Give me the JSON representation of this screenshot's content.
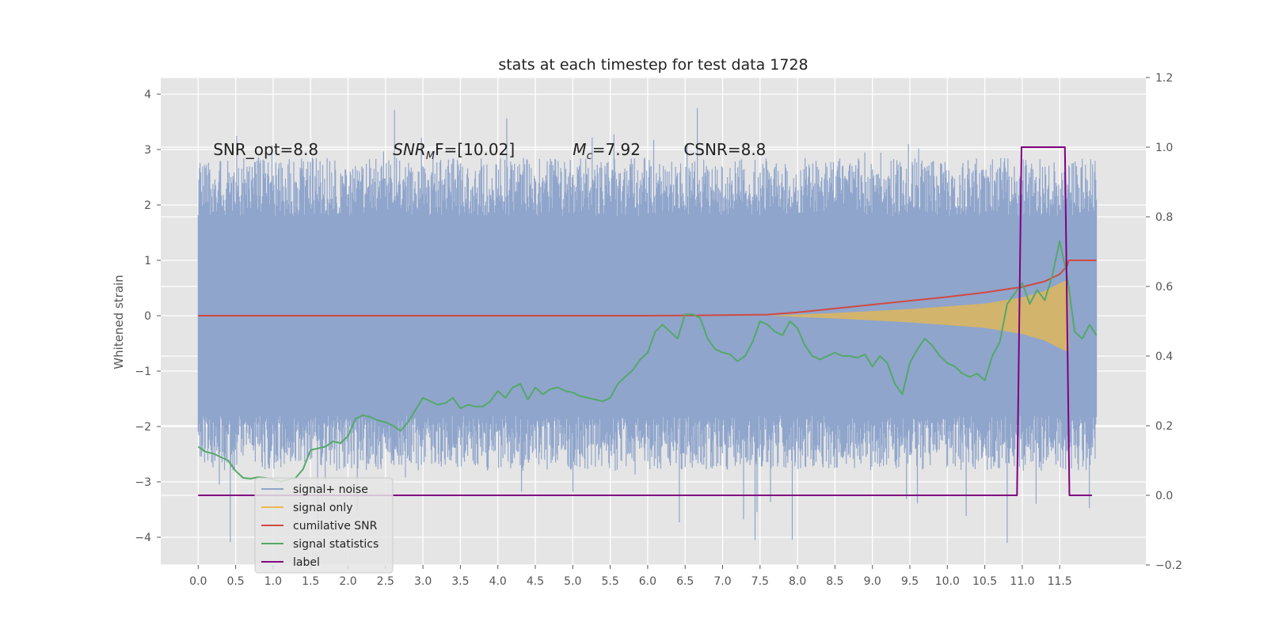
{
  "chart_data": {
    "type": "line",
    "title": "stats at each timestep for test data 1728",
    "ylabel": "Whitened strain",
    "y2label": "",
    "xlim": [
      -0.5,
      12.65
    ],
    "ylim": [
      -4.5,
      4.3
    ],
    "y2lim": [
      -0.2,
      1.2
    ],
    "grid": true,
    "legend_position": "lower-left",
    "x_ticks": [
      "0.0",
      "0.5",
      "1.0",
      "1.5",
      "2.0",
      "2.5",
      "3.0",
      "3.5",
      "4.0",
      "4.5",
      "5.0",
      "5.5",
      "6.0",
      "6.5",
      "7.0",
      "7.5",
      "8.0",
      "8.5",
      "9.0",
      "9.5",
      "10.0",
      "10.5",
      "11.0",
      "11.5"
    ],
    "y_ticks": [
      4,
      3,
      2,
      1,
      0,
      -1,
      -2,
      -3,
      -4
    ],
    "y2_ticks": [
      "1.2",
      "1.0",
      "0.8",
      "0.6",
      "0.4",
      "0.2",
      "0.0",
      "−0.2"
    ],
    "annotations": [
      {
        "x": 0.2,
        "y": 3.0,
        "text": "SNR_opt=8.8"
      },
      {
        "x": 2.6,
        "y": 3.0,
        "text": "SNR_MF=[10.02]",
        "base": "SNR",
        "sub": "M",
        "tail": "F=[10.02]"
      },
      {
        "x": 5.0,
        "y": 3.0,
        "text": "M_c=7.92",
        "base": "M",
        "sub": "c",
        "tail": "=7.92"
      },
      {
        "x": 6.48,
        "y": 3.0,
        "text": "CSNR=8.8"
      }
    ],
    "series": [
      {
        "name": "signal+ noise",
        "axis": "left",
        "color": "#8fa5cc",
        "style": "noise",
        "x_range": [
          0.0,
          11.99
        ],
        "band_low": -1.8,
        "band_high": 1.8,
        "spike_max": 3.95,
        "spike_min": -4.1
      },
      {
        "name": "signal only",
        "axis": "left",
        "color": "#e8b94c",
        "style": "envelope",
        "envelope": {
          "x": [
            7.6,
            8.5,
            9.5,
            10.5,
            11.0,
            11.3,
            11.55,
            11.62
          ],
          "amp": [
            0.0,
            0.05,
            0.12,
            0.22,
            0.33,
            0.45,
            0.62,
            0.65
          ]
        }
      },
      {
        "name": "cumilative SNR",
        "axis": "left",
        "color": "#d04a43",
        "style": "line",
        "x": [
          0.0,
          6.0,
          7.0,
          7.6,
          8.0,
          8.5,
          9.0,
          9.5,
          10.0,
          10.5,
          11.0,
          11.3,
          11.5,
          11.6,
          11.62,
          11.99
        ],
        "y": [
          0.0,
          0.0,
          0.01,
          0.02,
          0.06,
          0.13,
          0.2,
          0.27,
          0.34,
          0.42,
          0.52,
          0.62,
          0.75,
          0.9,
          1.0,
          1.0
        ]
      },
      {
        "name": "signal statistics",
        "axis": "right",
        "color": "#55a868",
        "style": "line",
        "x": [
          0.0,
          0.1,
          0.2,
          0.3,
          0.4,
          0.5,
          0.6,
          0.7,
          0.8,
          0.9,
          1.0,
          1.1,
          1.2,
          1.3,
          1.4,
          1.5,
          1.6,
          1.7,
          1.8,
          1.9,
          2.0,
          2.1,
          2.2,
          2.3,
          2.4,
          2.5,
          2.6,
          2.7,
          2.8,
          2.9,
          3.0,
          3.1,
          3.2,
          3.3,
          3.4,
          3.5,
          3.6,
          3.7,
          3.8,
          3.9,
          4.0,
          4.1,
          4.2,
          4.3,
          4.4,
          4.5,
          4.6,
          4.7,
          4.8,
          4.9,
          5.0,
          5.1,
          5.2,
          5.3,
          5.4,
          5.5,
          5.6,
          5.7,
          5.8,
          5.9,
          6.0,
          6.1,
          6.2,
          6.3,
          6.4,
          6.5,
          6.6,
          6.7,
          6.8,
          6.9,
          7.0,
          7.1,
          7.2,
          7.3,
          7.4,
          7.5,
          7.6,
          7.7,
          7.8,
          7.9,
          8.0,
          8.1,
          8.2,
          8.3,
          8.4,
          8.5,
          8.6,
          8.7,
          8.8,
          8.9,
          9.0,
          9.1,
          9.2,
          9.3,
          9.4,
          9.5,
          9.6,
          9.7,
          9.8,
          9.9,
          10.0,
          10.1,
          10.2,
          10.3,
          10.4,
          10.5,
          10.6,
          10.7,
          10.8,
          10.9,
          11.0,
          11.1,
          11.2,
          11.3,
          11.4,
          11.5,
          11.6,
          11.7,
          11.8,
          11.9,
          11.99
        ],
        "y": [
          0.14,
          0.125,
          0.12,
          0.11,
          0.1,
          0.07,
          0.05,
          0.048,
          0.052,
          0.05,
          0.045,
          0.04,
          0.045,
          0.05,
          0.075,
          0.13,
          0.135,
          0.14,
          0.155,
          0.15,
          0.17,
          0.22,
          0.23,
          0.225,
          0.215,
          0.21,
          0.2,
          0.185,
          0.21,
          0.245,
          0.28,
          0.27,
          0.26,
          0.265,
          0.28,
          0.25,
          0.26,
          0.255,
          0.255,
          0.27,
          0.3,
          0.28,
          0.31,
          0.32,
          0.275,
          0.31,
          0.29,
          0.305,
          0.31,
          0.3,
          0.295,
          0.285,
          0.28,
          0.275,
          0.27,
          0.28,
          0.32,
          0.34,
          0.36,
          0.39,
          0.41,
          0.47,
          0.49,
          0.47,
          0.45,
          0.52,
          0.52,
          0.51,
          0.45,
          0.42,
          0.41,
          0.405,
          0.385,
          0.4,
          0.44,
          0.5,
          0.49,
          0.47,
          0.46,
          0.5,
          0.48,
          0.43,
          0.4,
          0.39,
          0.4,
          0.41,
          0.4,
          0.4,
          0.395,
          0.405,
          0.37,
          0.4,
          0.38,
          0.32,
          0.29,
          0.38,
          0.42,
          0.45,
          0.43,
          0.4,
          0.38,
          0.37,
          0.35,
          0.34,
          0.35,
          0.33,
          0.4,
          0.44,
          0.55,
          0.58,
          0.61,
          0.55,
          0.59,
          0.56,
          0.63,
          0.73,
          0.63,
          0.47,
          0.45,
          0.49,
          0.46
        ]
      },
      {
        "name": "label",
        "axis": "right",
        "color": "#800080",
        "style": "line",
        "x": [
          0.0,
          10.93,
          10.99,
          11.57,
          11.63,
          11.93
        ],
        "y": [
          0.0,
          0.0,
          1.0,
          1.0,
          0.0,
          0.0
        ]
      }
    ],
    "legend": [
      {
        "name": "signal+ noise",
        "color": "#8fa5cc"
      },
      {
        "name": "signal only",
        "color": "#e8b94c"
      },
      {
        "name": "cumilative SNR",
        "color": "#d04a43"
      },
      {
        "name": "signal statistics",
        "color": "#55a868"
      },
      {
        "name": "label",
        "color": "#800080"
      }
    ]
  }
}
